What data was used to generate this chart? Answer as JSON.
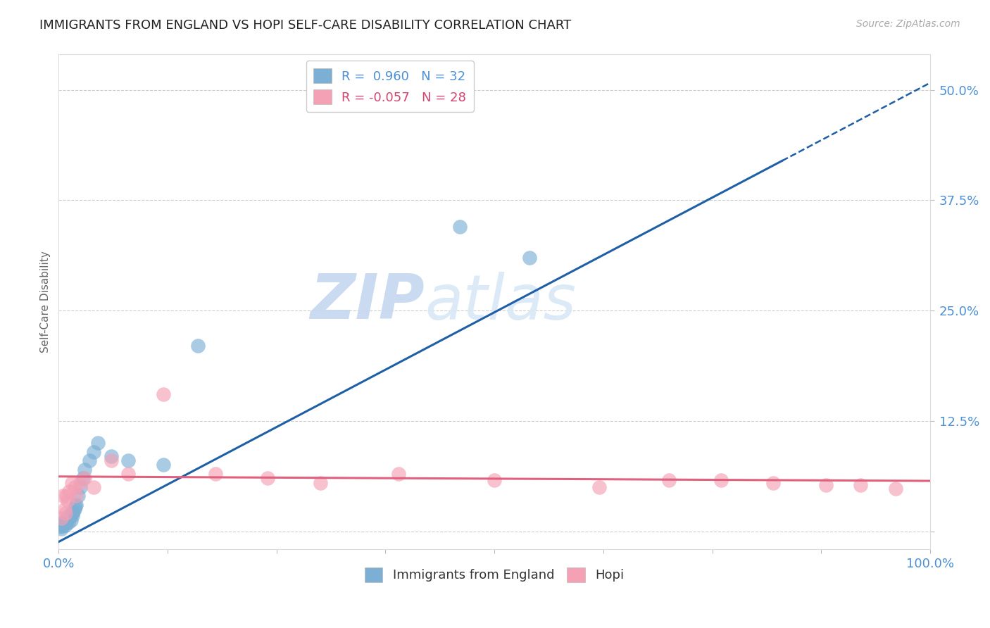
{
  "title": "IMMIGRANTS FROM ENGLAND VS HOPI SELF-CARE DISABILITY CORRELATION CHART",
  "source_text": "Source: ZipAtlas.com",
  "ylabel": "Self-Care Disability",
  "xlim": [
    0.0,
    1.0
  ],
  "ylim": [
    -0.02,
    0.54
  ],
  "blue_R": 0.96,
  "blue_N": 32,
  "pink_R": -0.057,
  "pink_N": 28,
  "blue_color": "#7bafd4",
  "pink_color": "#f4a0b5",
  "blue_line_color": "#1f5fa6",
  "pink_line_color": "#e0607e",
  "watermark_zip": "ZIP",
  "watermark_atlas": "atlas",
  "title_color": "#222222",
  "axis_label_color": "#4d90d4",
  "legend_blue_text_color": "#4d90d4",
  "legend_pink_text_color": "#d44470",
  "blue_line_slope": 0.52,
  "blue_line_intercept": -0.012,
  "blue_line_solid_end": 0.83,
  "pink_line_slope": -0.005,
  "pink_line_intercept": 0.062,
  "blue_scatter_x": [
    0.002,
    0.004,
    0.005,
    0.006,
    0.007,
    0.008,
    0.009,
    0.01,
    0.011,
    0.012,
    0.013,
    0.014,
    0.015,
    0.016,
    0.017,
    0.018,
    0.019,
    0.02,
    0.022,
    0.025,
    0.028,
    0.03,
    0.035,
    0.04,
    0.045,
    0.06,
    0.08,
    0.12,
    0.16,
    0.46,
    0.54,
    0.003
  ],
  "blue_scatter_y": [
    0.005,
    0.008,
    0.006,
    0.01,
    0.012,
    0.007,
    0.009,
    0.015,
    0.01,
    0.018,
    0.016,
    0.012,
    0.02,
    0.018,
    0.022,
    0.025,
    0.028,
    0.03,
    0.04,
    0.05,
    0.06,
    0.07,
    0.08,
    0.09,
    0.1,
    0.085,
    0.08,
    0.075,
    0.21,
    0.345,
    0.31,
    0.003
  ],
  "pink_scatter_x": [
    0.003,
    0.005,
    0.007,
    0.008,
    0.009,
    0.01,
    0.012,
    0.015,
    0.018,
    0.02,
    0.025,
    0.03,
    0.04,
    0.06,
    0.08,
    0.12,
    0.18,
    0.24,
    0.3,
    0.39,
    0.5,
    0.62,
    0.7,
    0.76,
    0.82,
    0.88,
    0.92,
    0.96
  ],
  "pink_scatter_y": [
    0.015,
    0.04,
    0.025,
    0.02,
    0.04,
    0.035,
    0.045,
    0.055,
    0.05,
    0.04,
    0.055,
    0.06,
    0.05,
    0.08,
    0.065,
    0.155,
    0.065,
    0.06,
    0.055,
    0.065,
    0.058,
    0.05,
    0.058,
    0.058,
    0.055,
    0.052,
    0.052,
    0.048
  ]
}
